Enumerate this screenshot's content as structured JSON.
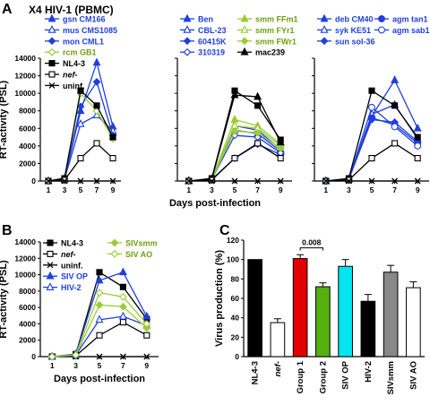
{
  "panels": {
    "A": "A",
    "B": "B",
    "C": "C"
  },
  "headers": {
    "A_title": "X4 HIV-1 (PBMC)"
  },
  "colors": {
    "blue": "#1f3fe0",
    "green": "#9acd32",
    "black": "#000000",
    "red": "#e00000",
    "darkgreen": "#55b010",
    "cyan": "#00e5f0",
    "gray": "#888888"
  },
  "chart_data": [
    {
      "type": "line",
      "id": "A1",
      "ylabel": "RT-activity (PSL)",
      "xlabel": "",
      "x": [
        1,
        3,
        5,
        7,
        9
      ],
      "ylim": [
        0,
        14000
      ],
      "yticks": [
        0,
        2000,
        4000,
        6000,
        8000,
        10000,
        12000,
        14000
      ],
      "legend": [
        {
          "label": "gsn CM166",
          "color": "#1f3fe0",
          "marker": "tri-filled"
        },
        {
          "label": "mus CMS1085",
          "color": "#1f3fe0",
          "marker": "tri-open"
        },
        {
          "label": "mon CML1",
          "color": "#1f3fe0",
          "marker": "diamond-filled"
        },
        {
          "label": "rcm GB1",
          "color": "#9acd32",
          "marker": "diamond-open"
        },
        {
          "label": "NL4-3",
          "color": "#000000",
          "marker": "square-filled"
        },
        {
          "label": "nef-",
          "color": "#000000",
          "marker": "square-open"
        },
        {
          "label": "uninf.",
          "color": "#000000",
          "marker": "x"
        }
      ],
      "series": [
        {
          "name": "gsn CM166",
          "color": "#1f3fe0",
          "marker": "tri-filled",
          "values": [
            0,
            200,
            8000,
            13500,
            6200
          ]
        },
        {
          "name": "mus CMS1085",
          "color": "#1f3fe0",
          "marker": "tri-open",
          "values": [
            0,
            200,
            6500,
            7500,
            5700
          ]
        },
        {
          "name": "mon CML1",
          "color": "#1f3fe0",
          "marker": "diamond-filled",
          "values": [
            0,
            300,
            8500,
            11300,
            5200
          ]
        },
        {
          "name": "rcm GB1",
          "color": "#9acd32",
          "marker": "diamond-open",
          "values": [
            0,
            400,
            10000,
            8000,
            4800
          ]
        },
        {
          "name": "NL4-3",
          "color": "#000000",
          "marker": "square-filled",
          "values": [
            0,
            300,
            10300,
            8600,
            5000
          ]
        },
        {
          "name": "nef-",
          "color": "#000000",
          "marker": "square-open",
          "values": [
            0,
            100,
            2600,
            4300,
            2600
          ]
        },
        {
          "name": "uninf.",
          "color": "#000000",
          "marker": "x",
          "values": [
            0,
            0,
            0,
            0,
            0
          ]
        }
      ]
    },
    {
      "type": "line",
      "id": "A2",
      "ylabel": "",
      "xlabel": "Days post-infection",
      "x": [
        1,
        3,
        5,
        7,
        9
      ],
      "ylim": [
        0,
        14000
      ],
      "legend": [
        {
          "label": "Ben",
          "color": "#1f3fe0",
          "marker": "tri-filled"
        },
        {
          "label": "CBL-23",
          "color": "#1f3fe0",
          "marker": "tri-open"
        },
        {
          "label": "60415K",
          "color": "#1f3fe0",
          "marker": "diamond-filled"
        },
        {
          "label": "310319",
          "color": "#1f3fe0",
          "marker": "diamond-open"
        },
        {
          "label": "smm FFm1",
          "color": "#9acd32",
          "marker": "tri-filled"
        },
        {
          "label": "smm FYr1",
          "color": "#9acd32",
          "marker": "tri-open"
        },
        {
          "label": "smm FWr1",
          "color": "#9acd32",
          "marker": "diamond-filled"
        },
        {
          "label": "mac239",
          "color": "#000000",
          "marker": "tri-filled"
        }
      ],
      "series": [
        {
          "name": "Ben",
          "color": "#1f3fe0",
          "marker": "tri-filled",
          "values": [
            0,
            200,
            6300,
            5800,
            3600
          ]
        },
        {
          "name": "CBL-23",
          "color": "#1f3fe0",
          "marker": "tri-open",
          "values": [
            0,
            200,
            5800,
            5400,
            3400
          ]
        },
        {
          "name": "60415K",
          "color": "#1f3fe0",
          "marker": "diamond-filled",
          "values": [
            0,
            200,
            2600,
            4200,
            3000
          ]
        },
        {
          "name": "310319",
          "color": "#1f3fe0",
          "marker": "diamond-open",
          "values": [
            0,
            200,
            5200,
            5000,
            3200
          ]
        },
        {
          "name": "smm FFm1",
          "color": "#9acd32",
          "marker": "tri-filled",
          "values": [
            0,
            200,
            7000,
            6300,
            4200
          ]
        },
        {
          "name": "smm FYr1",
          "color": "#9acd32",
          "marker": "tri-open",
          "values": [
            0,
            200,
            6300,
            6000,
            4000
          ]
        },
        {
          "name": "smm FWr1",
          "color": "#9acd32",
          "marker": "diamond-filled",
          "values": [
            0,
            200,
            5700,
            5500,
            3700
          ]
        },
        {
          "name": "mac239",
          "color": "#000000",
          "marker": "tri-filled",
          "values": [
            0,
            200,
            9800,
            9600,
            4400
          ]
        },
        {
          "name": "NL4-3",
          "color": "#000000",
          "marker": "square-filled",
          "values": [
            0,
            300,
            10300,
            8600,
            4700
          ]
        },
        {
          "name": "nef-",
          "color": "#000000",
          "marker": "square-open",
          "values": [
            0,
            100,
            2600,
            4300,
            2600
          ]
        },
        {
          "name": "uninf.",
          "color": "#000000",
          "marker": "x",
          "values": [
            0,
            0,
            0,
            0,
            0
          ]
        }
      ]
    },
    {
      "type": "line",
      "id": "A3",
      "ylabel": "",
      "xlabel": "",
      "x": [
        1,
        3,
        5,
        7,
        9
      ],
      "ylim": [
        0,
        14000
      ],
      "legend": [
        {
          "label": "deb CM40",
          "color": "#1f3fe0",
          "marker": "tri-filled"
        },
        {
          "label": "syk KE51",
          "color": "#1f3fe0",
          "marker": "tri-open"
        },
        {
          "label": "sun sol-36",
          "color": "#1f3fe0",
          "marker": "diamond-filled"
        },
        {
          "label": "agm tan1",
          "color": "#1f3fe0",
          "marker": "circle-filled"
        },
        {
          "label": "agm sab1",
          "color": "#1f3fe0",
          "marker": "circle-open"
        }
      ],
      "series": [
        {
          "name": "deb CM40",
          "color": "#1f3fe0",
          "marker": "tri-filled",
          "values": [
            0,
            200,
            7400,
            11500,
            6000
          ]
        },
        {
          "name": "syk KE51",
          "color": "#1f3fe0",
          "marker": "tri-open",
          "values": [
            0,
            200,
            7600,
            8700,
            4800
          ]
        },
        {
          "name": "sun sol-36",
          "color": "#1f3fe0",
          "marker": "diamond-filled",
          "values": [
            0,
            200,
            7000,
            6700,
            4500
          ]
        },
        {
          "name": "agm tan1",
          "color": "#1f3fe0",
          "marker": "circle-filled",
          "values": [
            0,
            200,
            7200,
            6400,
            4300
          ]
        },
        {
          "name": "agm sab1",
          "color": "#1f3fe0",
          "marker": "circle-open",
          "values": [
            0,
            200,
            8400,
            6200,
            4000
          ]
        },
        {
          "name": "NL4-3",
          "color": "#000000",
          "marker": "square-filled",
          "values": [
            0,
            300,
            10300,
            8600,
            5000
          ]
        },
        {
          "name": "nef-",
          "color": "#000000",
          "marker": "square-open",
          "values": [
            0,
            100,
            2600,
            4300,
            2600
          ]
        },
        {
          "name": "uninf.",
          "color": "#000000",
          "marker": "x",
          "values": [
            0,
            0,
            0,
            0,
            0
          ]
        }
      ]
    },
    {
      "type": "line",
      "id": "B",
      "ylabel": "RT-activity (PSL)",
      "xlabel": "Days post-infection",
      "x": [
        1,
        3,
        5,
        7,
        9
      ],
      "ylim": [
        0,
        14000
      ],
      "yticks": [
        0,
        2000,
        4000,
        6000,
        8000,
        10000,
        12000,
        14000
      ],
      "legend": [
        {
          "label": "NL4-3",
          "color": "#000000",
          "marker": "square-filled"
        },
        {
          "label": "nef-",
          "color": "#000000",
          "marker": "square-open"
        },
        {
          "label": "uninf.",
          "color": "#000000",
          "marker": "x"
        },
        {
          "label": "SIV OP",
          "color": "#1f3fe0",
          "marker": "tri-filled"
        },
        {
          "label": "HIV-2",
          "color": "#1f3fe0",
          "marker": "tri-open"
        },
        {
          "label": "SIVsmm",
          "color": "#9acd32",
          "marker": "diamond-filled"
        },
        {
          "label": "SIV AO",
          "color": "#9acd32",
          "marker": "diamond-open"
        }
      ],
      "series": [
        {
          "name": "NL4-3",
          "color": "#000000",
          "marker": "square-filled",
          "values": [
            0,
            300,
            10300,
            8500,
            4600
          ]
        },
        {
          "name": "nef-",
          "color": "#000000",
          "marker": "square-open",
          "values": [
            0,
            100,
            2600,
            4200,
            2600
          ]
        },
        {
          "name": "uninf.",
          "color": "#000000",
          "marker": "x",
          "values": [
            0,
            0,
            0,
            0,
            0
          ]
        },
        {
          "name": "SIV OP",
          "color": "#1f3fe0",
          "marker": "tri-filled",
          "values": [
            0,
            300,
            9300,
            10300,
            4900
          ]
        },
        {
          "name": "HIV-2",
          "color": "#1f3fe0",
          "marker": "tri-open",
          "values": [
            0,
            200,
            4500,
            4900,
            3800
          ]
        },
        {
          "name": "SIVsmm",
          "color": "#9acd32",
          "marker": "diamond-filled",
          "values": [
            0,
            200,
            6300,
            6100,
            3500
          ]
        },
        {
          "name": "SIV AO",
          "color": "#9acd32",
          "marker": "diamond-open",
          "values": [
            0,
            200,
            7800,
            7300,
            4000
          ]
        }
      ]
    },
    {
      "type": "bar",
      "id": "C",
      "ylabel": "Virus production (%)",
      "ylim": [
        0,
        120
      ],
      "yticks": [
        0,
        20,
        40,
        60,
        80,
        100,
        120
      ],
      "categories": [
        "NL4-3",
        "nef-",
        "Group 1",
        "Group 2",
        "SIV OP",
        "HIV-2",
        "SIVsmm",
        "SIV AO"
      ],
      "values": [
        100,
        35,
        101,
        72,
        93,
        57,
        87,
        71
      ],
      "errors": [
        0,
        4,
        4,
        4,
        7,
        7,
        7,
        6
      ],
      "bar_colors": [
        "#000000",
        "#ffffff",
        "#e00000",
        "#55b010",
        "#00e5f0",
        "#000000",
        "#888888",
        "#ffffff"
      ],
      "annotation": {
        "text": "0.008",
        "between": [
          "Group 1",
          "Group 2"
        ],
        "y": 112
      }
    }
  ]
}
